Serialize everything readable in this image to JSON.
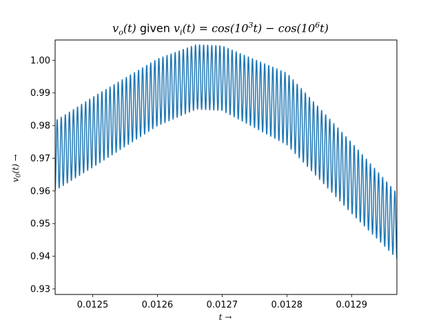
{
  "chart_data": {
    "type": "line",
    "title": "v_o(t) given v_i(t) = cos(10^3 t) − cos(10^6 t)",
    "xlabel": "t →",
    "ylabel": "v_0(t) →",
    "xlim": [
      0.012442,
      0.01297
    ],
    "ylim": [
      0.9283,
      1.0062
    ],
    "xticks": [
      0.0125,
      0.0126,
      0.0127,
      0.0128,
      0.0129
    ],
    "xtick_labels": [
      "0.0125",
      "0.0126",
      "0.0127",
      "0.0128",
      "0.0129"
    ],
    "yticks": [
      0.93,
      0.94,
      0.95,
      0.96,
      0.97,
      0.98,
      0.99,
      1.0
    ],
    "ytick_labels": [
      "0.93",
      "0.94",
      "0.95",
      "0.96",
      "0.97",
      "0.98",
      "0.99",
      "1.00"
    ],
    "grid": false,
    "series": [
      {
        "color": "#1f77b4",
        "description": "fast oscillation (~84 cycles across the view) around a slow concave envelope",
        "x": [
          0.012442,
          0.0125,
          0.0126,
          0.01266,
          0.0127,
          0.0128,
          0.0129,
          0.01297
        ],
        "upper": [
          0.9815,
          0.9888,
          1.0005,
          1.0049,
          1.0045,
          0.9962,
          0.9749,
          0.9594
        ],
        "lower": [
          0.96,
          0.9671,
          0.9798,
          0.9849,
          0.9845,
          0.974,
          0.953,
          0.9392
        ]
      }
    ]
  },
  "title_parts": {
    "vo": "v",
    "vo_sub": "o",
    "vo_arg": "(t)",
    "given": " given ",
    "vi": "v",
    "vi_sub": "i",
    "vi_arg": "(t) = cos(10",
    "exp1": "3",
    "mid": "t) − cos(10",
    "exp2": "6",
    "end": "t)"
  },
  "xlabel_text": "t →",
  "ylabel_text": "v0(t) →"
}
